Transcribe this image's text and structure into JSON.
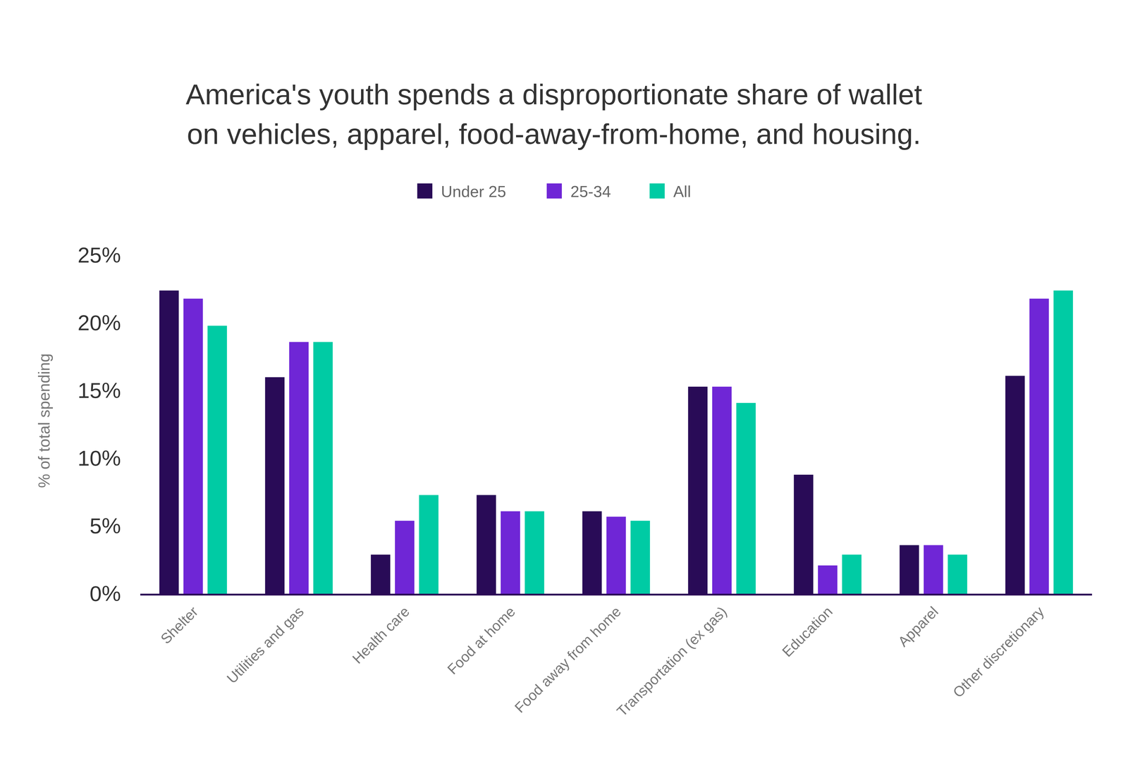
{
  "chart_data": {
    "type": "bar",
    "title": "America's youth spends a disproportionate share of wallet on vehicles, apparel, food-away-from-home, and housing.",
    "y_label": "% of total spending",
    "categories": [
      "Shelter",
      "Utilities and gas",
      "Health care",
      "Food at home",
      "Food away from home",
      "Transportation (ex gas)",
      "Education",
      "Apparel",
      "Other discretionary"
    ],
    "series": [
      {
        "name": "Under 25",
        "color": "#290b57",
        "values": [
          22.4,
          16.0,
          2.9,
          7.3,
          6.1,
          15.3,
          8.8,
          3.6,
          16.1
        ]
      },
      {
        "name": "25-34",
        "color": "#6f26d6",
        "values": [
          21.8,
          18.6,
          5.4,
          6.1,
          5.7,
          15.3,
          2.1,
          3.6,
          21.8
        ]
      },
      {
        "name": "All",
        "color": "#00cba4",
        "values": [
          19.8,
          18.6,
          7.3,
          6.1,
          5.4,
          14.1,
          2.9,
          2.9,
          22.4
        ]
      }
    ],
    "ylim": [
      0,
      25
    ],
    "yticks": [
      {
        "value": 0,
        "label": "0%"
      },
      {
        "value": 5,
        "label": "5%"
      },
      {
        "value": 10,
        "label": "10%"
      },
      {
        "value": 15,
        "label": "15%"
      },
      {
        "value": 20,
        "label": "20%"
      },
      {
        "value": 25,
        "label": "25%"
      }
    ],
    "grid": false,
    "legend": "top"
  }
}
